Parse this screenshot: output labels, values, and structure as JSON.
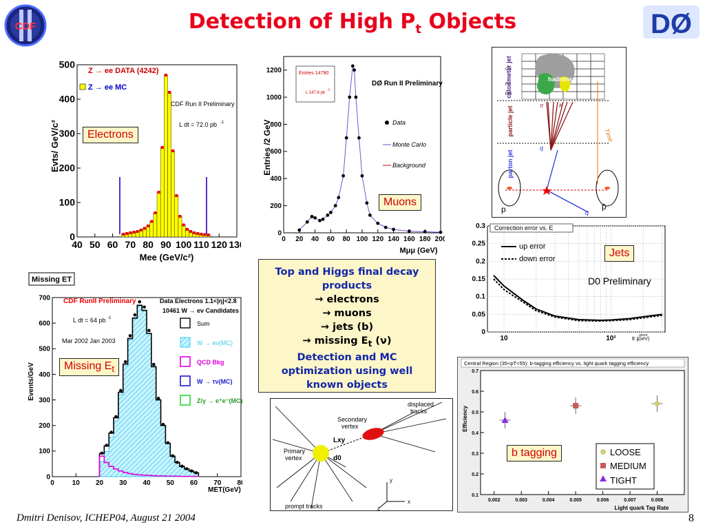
{
  "slide": {
    "title_main": "Detection of High P",
    "title_sub": "t",
    "title_end": " Objects",
    "footer": "Dmitri Denisov, ICHEP04, August 21 2004",
    "page_number": "8"
  },
  "logos": {
    "cdf": "CDF",
    "d0": "DØ"
  },
  "electrons": {
    "label": "Electrons",
    "legend_data": "Z → ee DATA (4242)",
    "legend_mc": "Z → ee  MC",
    "prelim": "CDF Run II Preliminary",
    "lumi": "L dt = 72.0 pb",
    "lumi_exp": "-1",
    "ylabel": "Evts/ GeV/c²",
    "xlabel": "Mee (GeV/c²)"
  },
  "muons": {
    "label": "Muons",
    "entries": "Entries 14790",
    "lumi": "L 147.8 pb",
    "lumi_exp": "-1",
    "prelim": "DØ Run II Preliminary",
    "legend_data": "Data",
    "legend_mc": "Monte Carlo",
    "legend_bkg": "Background",
    "ylabel": "Entries /2 GeV",
    "xlabel": "Mμμ (GeV)"
  },
  "jets_diagram": {
    "labels": [
      "calorimeter jet",
      "particle jet",
      "parton jet",
      "hadrons",
      "Time",
      "CH",
      "FH",
      "EM",
      "q",
      "q̄",
      "p",
      "p̄",
      "K",
      "π"
    ]
  },
  "jets": {
    "label": "Jets",
    "prelim": "D0 Preliminary",
    "title": "Correction error vs. E",
    "legend_up": "up error",
    "legend_down": "down error",
    "xlabel": "E (GeV)",
    "xlabel_sup": "uncor",
    "xlabel_sub": "T"
  },
  "met": {
    "header": "Missing ET",
    "label_main": "Missing E",
    "label_sub": "t",
    "prelim": "CDF RunII Preliminary",
    "lumi": "L dt = 64 pb",
    "lumi_exp": "-1",
    "dates": "Mar 2002  Jan 2003",
    "legend_data": "Data Electrons 1.1<|η|<2.8",
    "legend_data2": "10461 W → eν Candidates",
    "legend": [
      "Sum",
      "W → eν(MC)",
      "QCD Bkg",
      "W → τν(MC)",
      "Z/γ → e⁺e⁻(MC)"
    ],
    "ylabel": "Events/GeV",
    "xlabel": "MET(GeV)"
  },
  "center_text": {
    "line1": "Top and Higgs final decay",
    "line2": "products",
    "item1": "→ electrons",
    "item2": "→ muons",
    "item3": "→ jets (b)",
    "item4": "→ missing E",
    "item4_sub": "t",
    "item4_end": " (ν)",
    "line3": "Detection and MC",
    "line4": "optimization using well",
    "line5": "known objects"
  },
  "vertex": {
    "displaced": "displaced",
    "tracks": "tracks",
    "secondary": "Secondary",
    "vertex_word": "vertex",
    "lxy": "Lxy",
    "primary": "Primary",
    "primary_vertex": "vertex",
    "d0": "d0",
    "prompt": "prompt tracks",
    "x": "x",
    "y": "y",
    "z": "z"
  },
  "btag": {
    "label": "b tagging",
    "title": "Central Region (35<pT<55): b-tagging efficiency vs. light quark tagging  efficiency",
    "ylabel": "Efficiency",
    "xlabel": "Light quark Tag Rate",
    "legend": [
      "LOOSE",
      "MEDIUM",
      "TIGHT"
    ],
    "colors": {
      "loose": "#cfcf7a",
      "medium": "#c85a5a",
      "tight": "#8a2be2"
    }
  },
  "chart_data": [
    {
      "type": "bar",
      "name_ref": "electrons",
      "x": [
        66,
        68,
        70,
        72,
        74,
        76,
        78,
        80,
        82,
        84,
        86,
        88,
        90,
        92,
        94,
        96,
        98,
        100,
        102,
        104,
        106,
        108,
        110,
        112,
        114
      ],
      "values": [
        8,
        10,
        12,
        14,
        16,
        20,
        25,
        32,
        45,
        70,
        130,
        260,
        470,
        420,
        250,
        120,
        60,
        35,
        22,
        16,
        12,
        10,
        8,
        7,
        6
      ],
      "xlim": [
        40,
        130
      ],
      "ylim": [
        0,
        500
      ],
      "xticks": [
        40,
        50,
        60,
        70,
        80,
        90,
        100,
        110,
        120,
        130
      ],
      "yticks": [
        0,
        100,
        200,
        300,
        400,
        500
      ]
    },
    {
      "type": "scatter",
      "name_ref": "muons",
      "x": [
        20,
        30,
        36,
        40,
        46,
        50,
        56,
        60,
        66,
        70,
        76,
        80,
        84,
        88,
        90,
        92,
        96,
        100,
        106,
        110,
        120,
        130,
        140,
        160,
        180,
        200
      ],
      "y": [
        20,
        80,
        120,
        110,
        90,
        100,
        130,
        150,
        200,
        260,
        420,
        700,
        1000,
        1230,
        1200,
        1000,
        700,
        420,
        220,
        130,
        70,
        40,
        25,
        12,
        8,
        4
      ],
      "xlim": [
        0,
        200
      ],
      "ylim": [
        0,
        1300
      ],
      "xticks": [
        0,
        20,
        40,
        60,
        80,
        100,
        120,
        140,
        160,
        180,
        200
      ],
      "yticks": [
        0,
        200,
        400,
        600,
        800,
        1000,
        1200
      ]
    },
    {
      "type": "line",
      "name_ref": "jets",
      "x": [
        8,
        10,
        15,
        20,
        30,
        50,
        80,
        100,
        150,
        200,
        300
      ],
      "series": [
        {
          "name": "up error",
          "values": [
            0.16,
            0.13,
            0.09,
            0.065,
            0.045,
            0.035,
            0.033,
            0.034,
            0.038,
            0.043,
            0.05
          ]
        },
        {
          "name": "down error",
          "values": [
            0.15,
            0.12,
            0.085,
            0.06,
            0.042,
            0.032,
            0.031,
            0.032,
            0.035,
            0.04,
            0.047
          ]
        }
      ],
      "xscale": "log",
      "ylim": [
        0,
        0.3
      ],
      "yticks": [
        0,
        0.05,
        0.1,
        0.15,
        0.2,
        0.25,
        0.3
      ]
    },
    {
      "type": "bar",
      "name_ref": "met",
      "x": [
        20,
        22,
        24,
        26,
        28,
        30,
        32,
        34,
        36,
        38,
        40,
        42,
        44,
        46,
        48,
        50,
        52,
        54,
        56,
        58,
        60
      ],
      "series": [
        {
          "name": "Sum",
          "values": [
            90,
            120,
            170,
            230,
            330,
            440,
            540,
            620,
            670,
            650,
            560,
            430,
            300,
            200,
            130,
            80,
            55,
            40,
            30,
            22,
            15
          ]
        },
        {
          "name": "QCD Bkg",
          "values": [
            80,
            55,
            40,
            30,
            22,
            16,
            12,
            9,
            7,
            6,
            5,
            4,
            3,
            3,
            2,
            2,
            2,
            1,
            1,
            1,
            1
          ]
        }
      ],
      "xlim": [
        0,
        80
      ],
      "ylim": [
        0,
        700
      ],
      "xticks": [
        0,
        10,
        20,
        30,
        40,
        50,
        60,
        70,
        80
      ],
      "yticks": [
        0,
        100,
        200,
        300,
        400,
        500,
        600,
        700
      ]
    },
    {
      "type": "scatter",
      "name_ref": "btag",
      "series": [
        {
          "name": "LOOSE",
          "x": [
            0.008
          ],
          "y": [
            0.54
          ]
        },
        {
          "name": "MEDIUM",
          "x": [
            0.005
          ],
          "y": [
            0.53
          ]
        },
        {
          "name": "TIGHT",
          "x": [
            0.0024
          ],
          "y": [
            0.46
          ]
        }
      ],
      "xlim": [
        0.0015,
        0.009
      ],
      "ylim": [
        0.1,
        0.7
      ],
      "xticks": [
        0.002,
        0.003,
        0.004,
        0.005,
        0.006,
        0.007,
        0.008
      ],
      "yticks": [
        0.1,
        0.2,
        0.3,
        0.4,
        0.5,
        0.6,
        0.7
      ]
    }
  ]
}
